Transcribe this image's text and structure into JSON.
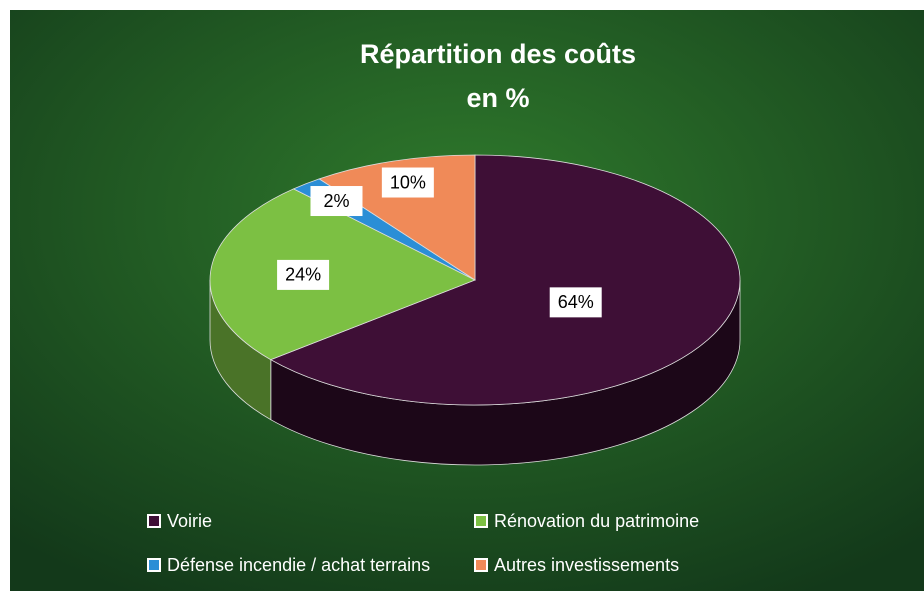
{
  "chart_data": {
    "type": "pie3d",
    "title": [
      "Répartition des coûts",
      "en %"
    ],
    "categories": [
      "Voirie",
      "Rénovation du patrimoine",
      "Défense incendie / achat terrains",
      "Autres investissements"
    ],
    "values": [
      64,
      24,
      2,
      10
    ],
    "value_labels": [
      "64%",
      "24%",
      "2%",
      "10%"
    ],
    "colors": [
      "#3e0f36",
      "#7cc043",
      "#2b8ed6",
      "#f08a58"
    ],
    "legend": "bottom"
  }
}
